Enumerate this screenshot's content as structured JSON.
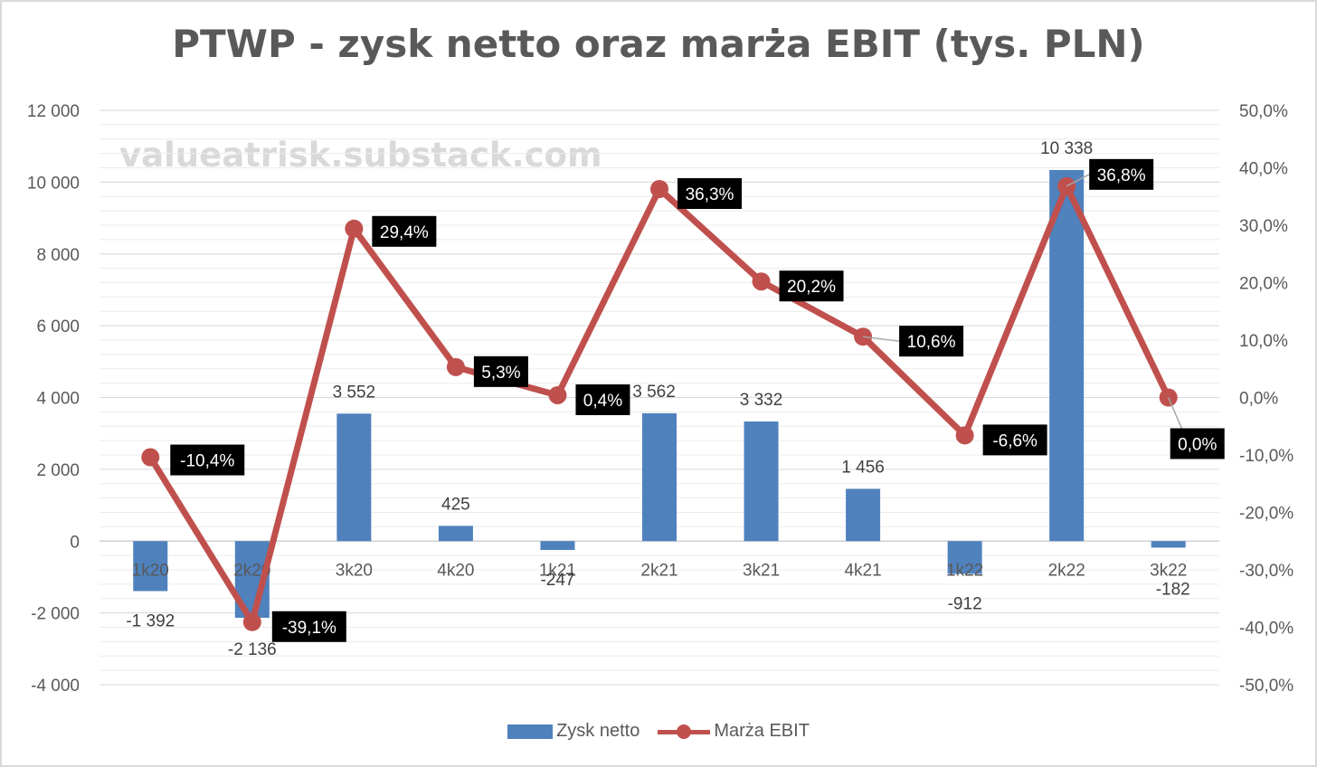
{
  "chart_data": {
    "type": "bar+line",
    "title": "PTWP - zysk netto oraz marża EBIT (tys. PLN)",
    "watermark": "valueatrisk.substack.com",
    "categories": [
      "1k20",
      "2k20",
      "3k20",
      "4k20",
      "1k21",
      "2k21",
      "3k21",
      "4k21",
      "1k22",
      "2k22",
      "3k22"
    ],
    "series": [
      {
        "name": "Zysk netto",
        "type": "bar",
        "axis": "left",
        "color": "#4f81bd",
        "values": [
          -1392,
          -2136,
          3552,
          425,
          -247,
          3562,
          3332,
          1456,
          -912,
          10338,
          -182
        ],
        "labels": [
          "-1 392",
          "-2 136",
          "3 552",
          "425",
          "-247",
          "3 562",
          "3 332",
          "1 456",
          "-912",
          "10 338",
          "-182"
        ]
      },
      {
        "name": "Marża EBIT",
        "type": "line",
        "axis": "right",
        "color": "#c0504d",
        "values": [
          -10.4,
          -39.1,
          29.4,
          5.3,
          0.4,
          36.3,
          20.2,
          10.6,
          -6.6,
          36.8,
          0.0
        ],
        "labels": [
          "-10,4%",
          "-39,1%",
          "29,4%",
          "5,3%",
          "0,4%",
          "36,3%",
          "20,2%",
          "10,6%",
          "-6,6%",
          "36,8%",
          "0,0%"
        ]
      }
    ],
    "left_axis": {
      "ylim": [
        -4000,
        12000
      ],
      "ticks": [
        12000,
        10000,
        8000,
        6000,
        4000,
        2000,
        0,
        -2000,
        -4000
      ],
      "tick_labels": [
        "12 000",
        "10 000",
        "8 000",
        "6 000",
        "4 000",
        "2 000",
        "0",
        "-2 000",
        "-4 000"
      ]
    },
    "right_axis": {
      "ylim": [
        -50,
        50
      ],
      "ticks": [
        50,
        40,
        30,
        20,
        10,
        0,
        -10,
        -20,
        -30,
        -40,
        -50
      ],
      "tick_labels": [
        "50,0%",
        "40,0%",
        "30,0%",
        "20,0%",
        "10,0%",
        "0,0%",
        "-10,0%",
        "-20,0%",
        "-30,0%",
        "-40,0%",
        "-50,0%"
      ]
    },
    "grid": true,
    "legend_position": "bottom"
  }
}
